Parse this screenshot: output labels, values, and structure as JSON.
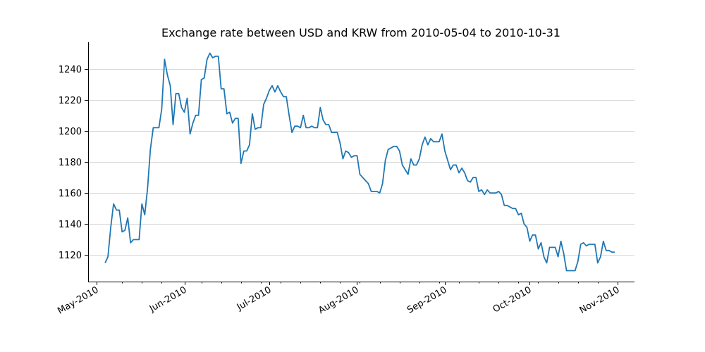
{
  "chart_data": {
    "type": "line",
    "title": "Exchange rate between USD and KRW from 2010-05-04 to 2010-10-31",
    "xlabel": "",
    "ylabel": "",
    "x_range": [
      "2010-04-28",
      "2010-11-07"
    ],
    "ylim": [
      1103,
      1257
    ],
    "y_ticks": [
      1120,
      1140,
      1160,
      1180,
      1200,
      1220,
      1240
    ],
    "x_ticks": [
      {
        "date": "2010-05-01",
        "label": "May-2010"
      },
      {
        "date": "2010-06-01",
        "label": "Jun-2010"
      },
      {
        "date": "2010-07-01",
        "label": "Jul-2010"
      },
      {
        "date": "2010-08-01",
        "label": "Aug-2010"
      },
      {
        "date": "2010-09-01",
        "label": "Sep-2010"
      },
      {
        "date": "2010-10-01",
        "label": "Oct-2010"
      },
      {
        "date": "2010-11-01",
        "label": "Nov-2010"
      }
    ],
    "x_minor_ticks": [
      "2010-05-10",
      "2010-05-17",
      "2010-05-24",
      "2010-06-07",
      "2010-06-14",
      "2010-06-21",
      "2010-06-28",
      "2010-07-05",
      "2010-07-12",
      "2010-07-19",
      "2010-07-26",
      "2010-08-02",
      "2010-08-09",
      "2010-08-16",
      "2010-08-23",
      "2010-08-30",
      "2010-09-06",
      "2010-09-13",
      "2010-09-20",
      "2010-09-27",
      "2010-10-04",
      "2010-10-11",
      "2010-10-18",
      "2010-10-25"
    ],
    "grid": "horizontal",
    "colors": {
      "line": "#1f77b4",
      "grid": "#c8c8c8"
    },
    "series": [
      {
        "x": [
          "2010-05-04",
          "2010-05-05",
          "2010-05-06",
          "2010-05-07",
          "2010-05-08",
          "2010-05-09",
          "2010-05-10",
          "2010-05-11",
          "2010-05-12",
          "2010-05-13",
          "2010-05-14",
          "2010-05-15",
          "2010-05-16",
          "2010-05-17",
          "2010-05-18",
          "2010-05-19",
          "2010-05-20",
          "2010-05-21",
          "2010-05-22",
          "2010-05-23",
          "2010-05-24",
          "2010-05-25",
          "2010-05-26",
          "2010-05-27",
          "2010-05-28",
          "2010-05-29",
          "2010-05-30",
          "2010-05-31",
          "2010-06-01",
          "2010-06-02",
          "2010-06-03",
          "2010-06-04",
          "2010-06-05",
          "2010-06-06",
          "2010-06-07",
          "2010-06-08",
          "2010-06-09",
          "2010-06-10",
          "2010-06-11",
          "2010-06-12",
          "2010-06-13",
          "2010-06-14",
          "2010-06-15",
          "2010-06-16",
          "2010-06-17",
          "2010-06-18",
          "2010-06-19",
          "2010-06-20",
          "2010-06-21",
          "2010-06-22",
          "2010-06-23",
          "2010-06-24",
          "2010-06-25",
          "2010-06-26",
          "2010-06-27",
          "2010-06-28",
          "2010-06-29",
          "2010-06-30",
          "2010-07-01",
          "2010-07-02",
          "2010-07-03",
          "2010-07-04",
          "2010-07-05",
          "2010-07-06",
          "2010-07-07",
          "2010-07-08",
          "2010-07-09",
          "2010-07-10",
          "2010-07-11",
          "2010-07-12",
          "2010-07-13",
          "2010-07-14",
          "2010-07-15",
          "2010-07-16",
          "2010-07-17",
          "2010-07-18",
          "2010-07-19",
          "2010-07-20",
          "2010-07-21",
          "2010-07-22",
          "2010-07-23",
          "2010-07-24",
          "2010-07-25",
          "2010-07-26",
          "2010-07-27",
          "2010-07-28",
          "2010-07-29",
          "2010-07-30",
          "2010-07-31",
          "2010-08-01",
          "2010-08-02",
          "2010-08-03",
          "2010-08-04",
          "2010-08-05",
          "2010-08-06",
          "2010-08-07",
          "2010-08-08",
          "2010-08-09",
          "2010-08-10",
          "2010-08-11",
          "2010-08-12",
          "2010-08-13",
          "2010-08-14",
          "2010-08-15",
          "2010-08-16",
          "2010-08-17",
          "2010-08-18",
          "2010-08-19",
          "2010-08-20",
          "2010-08-21",
          "2010-08-22",
          "2010-08-23",
          "2010-08-24",
          "2010-08-25",
          "2010-08-26",
          "2010-08-27",
          "2010-08-28",
          "2010-08-29",
          "2010-08-30",
          "2010-08-31",
          "2010-09-01",
          "2010-09-02",
          "2010-09-03",
          "2010-09-04",
          "2010-09-05",
          "2010-09-06",
          "2010-09-07",
          "2010-09-08",
          "2010-09-09",
          "2010-09-10",
          "2010-09-11",
          "2010-09-12",
          "2010-09-13",
          "2010-09-14",
          "2010-09-15",
          "2010-09-16",
          "2010-09-17",
          "2010-09-18",
          "2010-09-19",
          "2010-09-20",
          "2010-09-21",
          "2010-09-22",
          "2010-09-23",
          "2010-09-24",
          "2010-09-25",
          "2010-09-26",
          "2010-09-27",
          "2010-09-28",
          "2010-09-29",
          "2010-09-30",
          "2010-10-01",
          "2010-10-02",
          "2010-10-03",
          "2010-10-04",
          "2010-10-05",
          "2010-10-06",
          "2010-10-07",
          "2010-10-08",
          "2010-10-09",
          "2010-10-10",
          "2010-10-11",
          "2010-10-12",
          "2010-10-13",
          "2010-10-14",
          "2010-10-15",
          "2010-10-16",
          "2010-10-17",
          "2010-10-18",
          "2010-10-19",
          "2010-10-20",
          "2010-10-21",
          "2010-10-22",
          "2010-10-23",
          "2010-10-24",
          "2010-10-25",
          "2010-10-26",
          "2010-10-27",
          "2010-10-28",
          "2010-10-29",
          "2010-10-30",
          "2010-10-31"
        ],
        "y": [
          1115,
          1119,
          1138,
          1153,
          1149,
          1149,
          1135,
          1136,
          1144,
          1128,
          1130,
          1130,
          1130,
          1153,
          1146,
          1163,
          1188,
          1202,
          1202,
          1202,
          1214,
          1246,
          1236,
          1229,
          1204,
          1224,
          1224,
          1215,
          1212,
          1221,
          1198,
          1205,
          1210,
          1210,
          1233,
          1234,
          1246,
          1250,
          1247,
          1248,
          1248,
          1227,
          1227,
          1211,
          1212,
          1205,
          1208,
          1208,
          1179,
          1187,
          1187,
          1191,
          1211,
          1201,
          1202,
          1202,
          1217,
          1221,
          1226,
          1229,
          1225,
          1229,
          1225,
          1222,
          1222,
          1210,
          1199,
          1203,
          1203,
          1202,
          1210,
          1202,
          1202,
          1203,
          1202,
          1202,
          1215,
          1207,
          1204,
          1204,
          1199,
          1199,
          1199,
          1192,
          1182,
          1187,
          1186,
          1183,
          1184,
          1184,
          1172,
          1170,
          1168,
          1166,
          1161,
          1161,
          1161,
          1160,
          1166,
          1181,
          1188,
          1189,
          1190,
          1190,
          1187,
          1178,
          1175,
          1172,
          1182,
          1178,
          1178,
          1182,
          1191,
          1196,
          1191,
          1195,
          1193,
          1193,
          1193,
          1198,
          1187,
          1181,
          1175,
          1178,
          1178,
          1173,
          1176,
          1173,
          1168,
          1167,
          1170,
          1170,
          1161,
          1162,
          1159,
          1162,
          1160,
          1160,
          1160,
          1161,
          1159,
          1152,
          1152,
          1151,
          1150,
          1150,
          1146,
          1147,
          1140,
          1138,
          1129,
          1133,
          1133,
          1124,
          1128,
          1119,
          1115,
          1125,
          1125,
          1125,
          1119,
          1129,
          1121,
          1110,
          1110,
          1110,
          1110,
          1116,
          1127,
          1128,
          1126,
          1127,
          1127,
          1127,
          1115,
          1119,
          1129,
          1123,
          1123,
          1122,
          1122
        ]
      }
    ]
  }
}
